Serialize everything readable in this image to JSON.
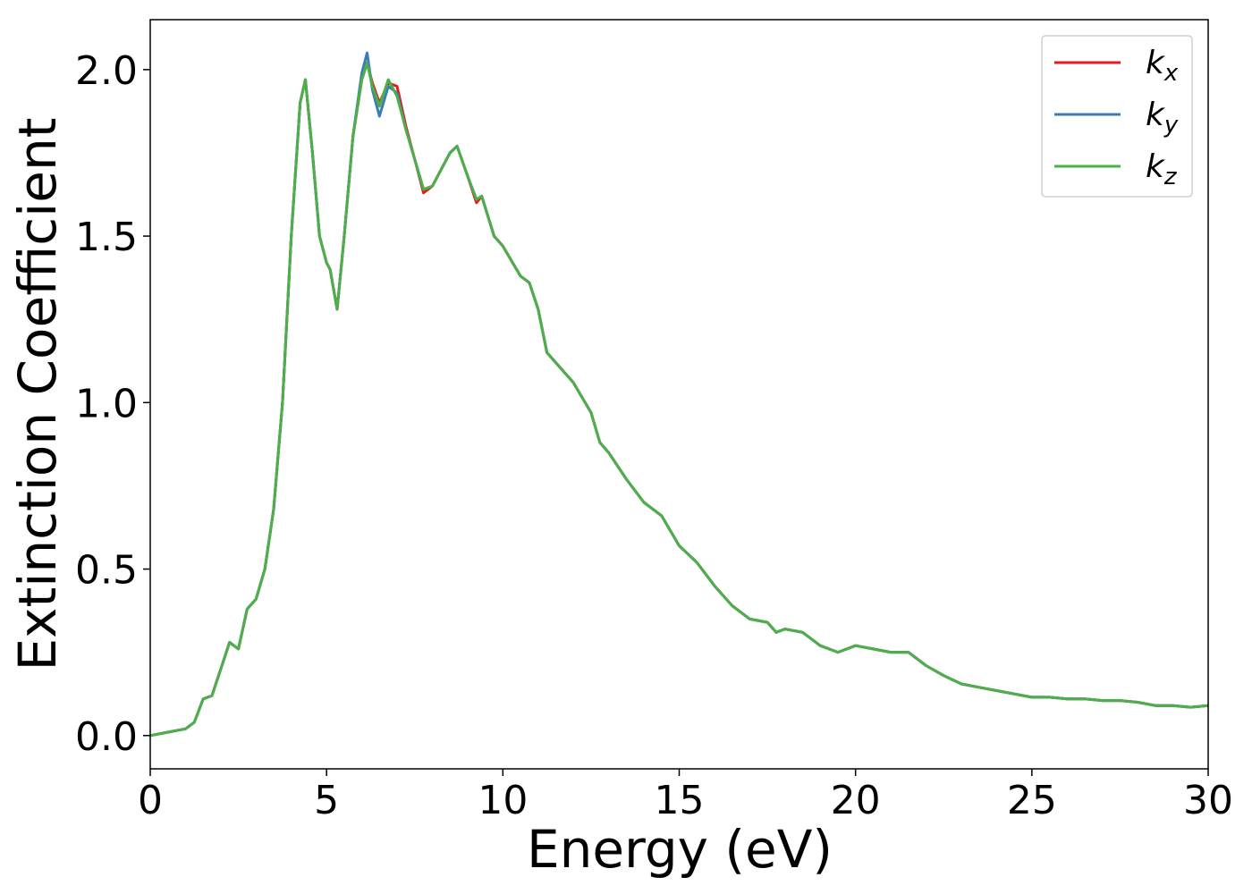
{
  "chart_data": {
    "type": "line",
    "xlabel": "Energy (eV)",
    "ylabel": "Extinction Coefficient",
    "x": [
      0,
      0.5,
      1.0,
      1.25,
      1.5,
      1.75,
      2.0,
      2.25,
      2.5,
      2.75,
      3.0,
      3.25,
      3.5,
      3.75,
      4.0,
      4.25,
      4.4,
      4.6,
      4.8,
      5.0,
      5.1,
      5.3,
      5.5,
      5.75,
      6.0,
      6.15,
      6.3,
      6.5,
      6.75,
      7.0,
      7.25,
      7.5,
      7.75,
      8.0,
      8.25,
      8.5,
      8.7,
      9.0,
      9.25,
      9.4,
      9.75,
      10.0,
      10.5,
      10.75,
      11.0,
      11.25,
      11.5,
      12.0,
      12.5,
      12.75,
      13.0,
      13.5,
      14.0,
      14.5,
      15.0,
      15.5,
      16.0,
      16.5,
      17.0,
      17.5,
      17.75,
      18.0,
      18.5,
      19.0,
      19.5,
      20.0,
      20.5,
      21.0,
      21.5,
      22.0,
      22.5,
      23.0,
      23.5,
      24.0,
      24.5,
      25.0,
      25.5,
      26.0,
      26.5,
      27.0,
      27.5,
      28.0,
      28.5,
      29.0,
      29.5,
      30.0
    ],
    "series": [
      {
        "name": "kx",
        "color": "#e41a1c",
        "values": [
          0.0,
          0.01,
          0.02,
          0.04,
          0.11,
          0.12,
          0.2,
          0.28,
          0.26,
          0.38,
          0.41,
          0.5,
          0.68,
          1.0,
          1.5,
          1.9,
          1.97,
          1.75,
          1.5,
          1.42,
          1.4,
          1.28,
          1.5,
          1.8,
          1.97,
          2.02,
          1.96,
          1.9,
          1.96,
          1.95,
          1.83,
          1.73,
          1.63,
          1.65,
          1.7,
          1.75,
          1.77,
          1.68,
          1.6,
          1.62,
          1.5,
          1.47,
          1.38,
          1.36,
          1.28,
          1.15,
          1.12,
          1.06,
          0.97,
          0.88,
          0.85,
          0.77,
          0.7,
          0.66,
          0.57,
          0.52,
          0.45,
          0.39,
          0.35,
          0.34,
          0.31,
          0.32,
          0.31,
          0.27,
          0.25,
          0.27,
          0.26,
          0.25,
          0.25,
          0.21,
          0.18,
          0.155,
          0.145,
          0.135,
          0.125,
          0.115,
          0.115,
          0.11,
          0.11,
          0.105,
          0.105,
          0.1,
          0.09,
          0.09,
          0.085,
          0.09
        ]
      },
      {
        "name": "ky",
        "color": "#377eb8",
        "values": [
          0.0,
          0.01,
          0.02,
          0.04,
          0.11,
          0.12,
          0.2,
          0.28,
          0.26,
          0.38,
          0.41,
          0.5,
          0.68,
          1.0,
          1.5,
          1.9,
          1.97,
          1.75,
          1.5,
          1.42,
          1.4,
          1.28,
          1.5,
          1.8,
          1.99,
          2.05,
          1.94,
          1.86,
          1.95,
          1.93,
          1.82,
          1.73,
          1.64,
          1.65,
          1.7,
          1.75,
          1.77,
          1.68,
          1.61,
          1.62,
          1.5,
          1.47,
          1.38,
          1.36,
          1.28,
          1.15,
          1.12,
          1.06,
          0.97,
          0.88,
          0.85,
          0.77,
          0.7,
          0.66,
          0.57,
          0.52,
          0.45,
          0.39,
          0.35,
          0.34,
          0.31,
          0.32,
          0.31,
          0.27,
          0.25,
          0.27,
          0.26,
          0.25,
          0.25,
          0.21,
          0.18,
          0.155,
          0.145,
          0.135,
          0.125,
          0.115,
          0.115,
          0.11,
          0.11,
          0.105,
          0.105,
          0.1,
          0.09,
          0.09,
          0.085,
          0.09
        ]
      },
      {
        "name": "kz",
        "color": "#4daf4a",
        "values": [
          0.0,
          0.01,
          0.02,
          0.04,
          0.11,
          0.12,
          0.2,
          0.28,
          0.26,
          0.38,
          0.41,
          0.5,
          0.68,
          1.0,
          1.5,
          1.9,
          1.97,
          1.75,
          1.5,
          1.42,
          1.4,
          1.28,
          1.5,
          1.8,
          1.97,
          2.02,
          1.95,
          1.89,
          1.97,
          1.92,
          1.82,
          1.73,
          1.64,
          1.65,
          1.7,
          1.75,
          1.77,
          1.68,
          1.61,
          1.62,
          1.5,
          1.47,
          1.38,
          1.36,
          1.28,
          1.15,
          1.12,
          1.06,
          0.97,
          0.88,
          0.85,
          0.77,
          0.7,
          0.66,
          0.57,
          0.52,
          0.45,
          0.39,
          0.35,
          0.34,
          0.31,
          0.32,
          0.31,
          0.27,
          0.25,
          0.27,
          0.26,
          0.25,
          0.25,
          0.21,
          0.18,
          0.155,
          0.145,
          0.135,
          0.125,
          0.115,
          0.115,
          0.11,
          0.11,
          0.105,
          0.105,
          0.1,
          0.09,
          0.09,
          0.085,
          0.09
        ]
      }
    ],
    "xlim": [
      0,
      30
    ],
    "xticks": [
      0,
      5,
      10,
      15,
      20,
      25,
      30
    ],
    "ylim": [
      -0.1,
      2.15
    ],
    "yticks": [
      {
        "value": 0,
        "label": "0.0"
      },
      0.5,
      {
        "value": 1,
        "label": "1.0"
      },
      1.5,
      {
        "value": 2,
        "label": "2.0"
      }
    ],
    "legend": "upper right"
  }
}
